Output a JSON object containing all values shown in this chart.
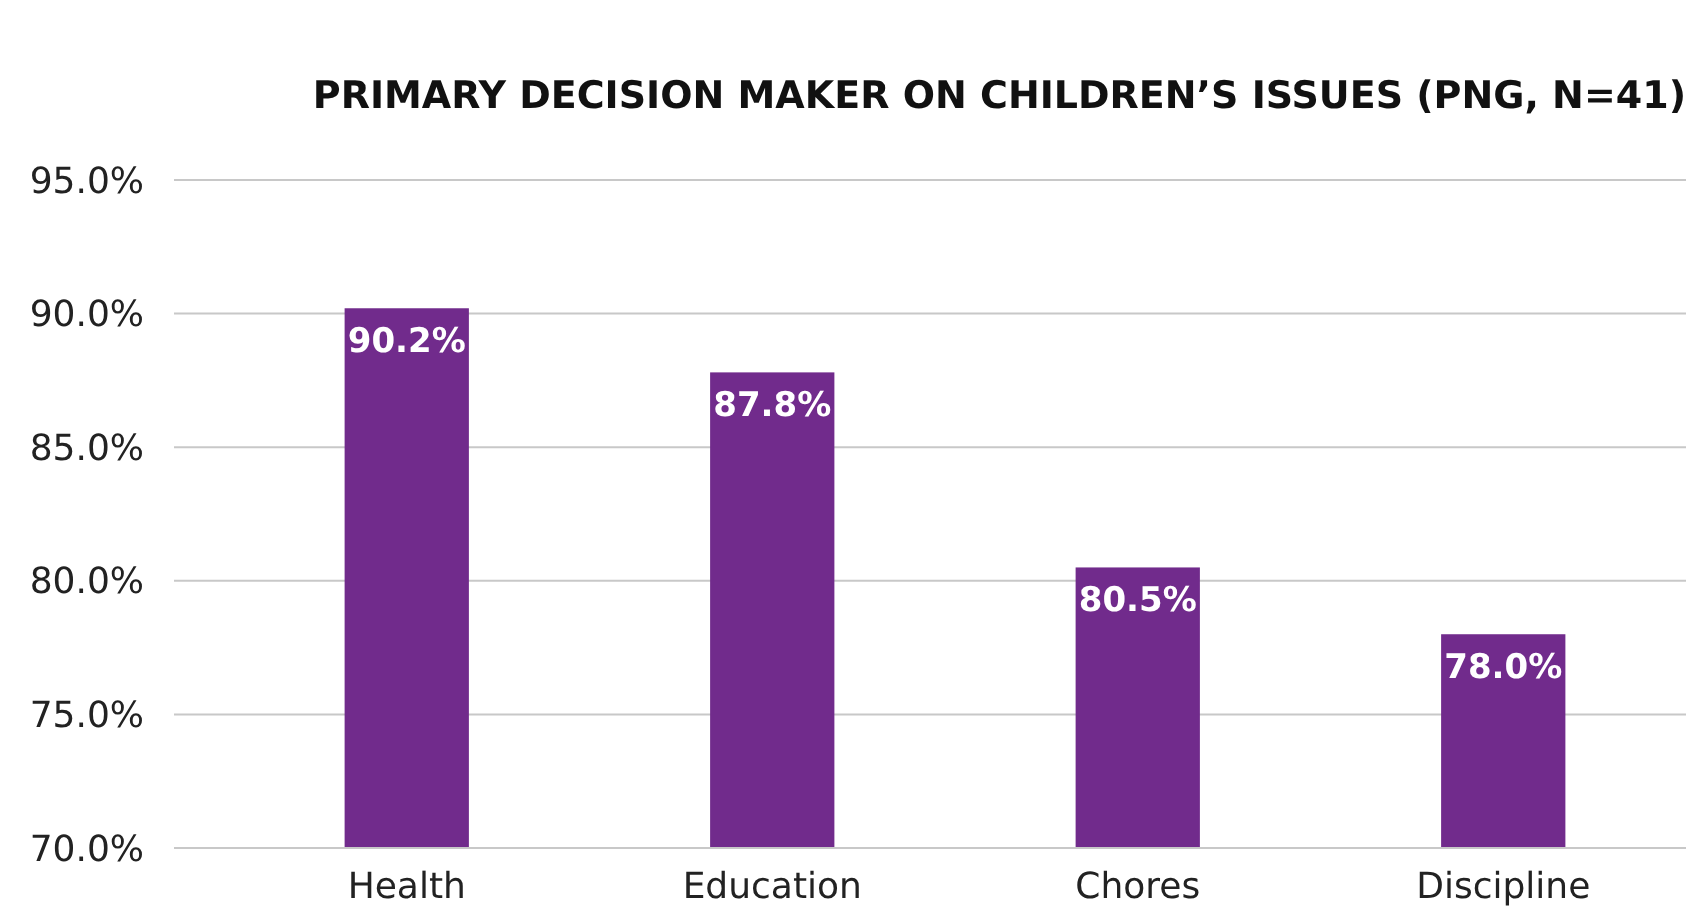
{
  "chart_data": {
    "type": "bar",
    "title": "PRIMARY DECISION MAKER ON CHILDREN’S ISSUES (PNG, N=41)",
    "categories": [
      "Health",
      "Education",
      "Chores",
      "Discipline"
    ],
    "values": [
      90.2,
      87.8,
      80.5,
      78.0
    ],
    "value_labels": [
      "90.2%",
      "87.8%",
      "80.5%",
      "78.0%"
    ],
    "color": "#712b8c",
    "ylim": [
      70,
      95
    ],
    "yticks": [
      {
        "value": 70,
        "label": "70.0%"
      },
      {
        "value": 75,
        "label": "75.0%"
      },
      {
        "value": 80,
        "label": "80.0%"
      },
      {
        "value": 85,
        "label": "85.0%"
      },
      {
        "value": 90,
        "label": "90.0%"
      },
      {
        "value": 95,
        "label": "95.0%"
      }
    ],
    "grid": "y"
  }
}
